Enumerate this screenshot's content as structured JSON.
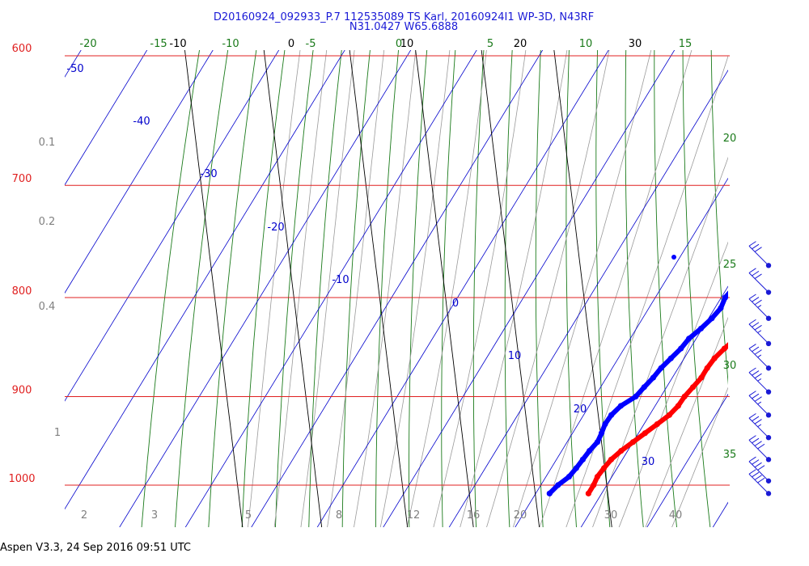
{
  "header": {
    "line1": "D20160924_092933_P.7 112535089 TS Karl, 20160924I1 WP-3D, N43RF",
    "line2": "N31.0427 W65.6888"
  },
  "footer": {
    "text": "Aspen V3.3, 24 Sep 2016  09:51 UTC"
  },
  "colors": {
    "isobar": "#e02020",
    "isotherm": "#0000cc",
    "dry_adiabat": "#1a7a1a",
    "moist_adiabat": "#9a9a9a",
    "mixing_ratio": "#000000",
    "temperature": "#ff0000",
    "dewpoint": "#0000ff",
    "barbs": "#1a1ad6"
  },
  "chart_data": {
    "type": "line",
    "title": "",
    "pressure_labels": [
      "600",
      "700",
      "800",
      "900",
      "1000"
    ],
    "isotherm_labels": [
      "-50",
      "-40",
      "-30",
      "-20",
      "-10",
      "0",
      "10",
      "20",
      "30"
    ],
    "theta_top_labels": [
      "-20",
      "-15",
      "-10",
      "-5",
      "0",
      "5",
      "10",
      "15"
    ],
    "theta_right_labels": [
      "20",
      "25",
      "30",
      "35"
    ],
    "mixing_ratio_top_labels": [
      "-10",
      "0",
      "10",
      "20",
      "30"
    ],
    "left_grey_labels": [
      "0.1",
      "0.2",
      "0.4",
      "1"
    ],
    "bottom_labels": [
      "2",
      "3",
      "5",
      "8",
      "12",
      "16",
      "20",
      "30",
      "40"
    ],
    "series": [
      {
        "name": "",
        "role": "temperature",
        "points": [
          [
            1010,
            28
          ],
          [
            1000,
            28
          ],
          [
            990,
            27.8
          ],
          [
            980,
            28
          ],
          [
            970,
            28.3
          ],
          [
            960,
            29
          ],
          [
            950,
            30
          ],
          [
            940,
            31
          ],
          [
            930,
            32
          ],
          [
            920,
            33
          ],
          [
            910,
            33.5
          ],
          [
            900,
            33.6
          ],
          [
            890,
            34
          ],
          [
            880,
            34.4
          ],
          [
            870,
            34.4
          ],
          [
            860,
            34.6
          ],
          [
            850,
            35.2
          ],
          [
            840,
            36
          ],
          [
            830,
            37
          ],
          [
            820,
            37.8
          ],
          [
            810,
            38
          ],
          [
            800,
            38.7
          ],
          [
            790,
            39
          ]
        ]
      },
      {
        "name": "",
        "role": "dewpoint",
        "points": [
          [
            1010,
            22.1
          ],
          [
            1000,
            22.6
          ],
          [
            990,
            23.5
          ],
          [
            980,
            23.8
          ],
          [
            970,
            24
          ],
          [
            960,
            24.2
          ],
          [
            950,
            24.6
          ],
          [
            940,
            24.4
          ],
          [
            930,
            24.1
          ],
          [
            920,
            24.2
          ],
          [
            910,
            24.8
          ],
          [
            900,
            26.2
          ],
          [
            890,
            26.6
          ],
          [
            880,
            27.1
          ],
          [
            870,
            27.4
          ],
          [
            860,
            28
          ],
          [
            850,
            28.6
          ],
          [
            840,
            28.9
          ],
          [
            830,
            29.8
          ],
          [
            820,
            30.5
          ],
          [
            810,
            30.9
          ],
          [
            800,
            30.6
          ],
          [
            790,
            31
          ]
        ]
      }
    ],
    "wind_barbs": [
      {
        "pressure": 1010,
        "knots": 40
      },
      {
        "pressure": 995,
        "knots": 40
      },
      {
        "pressure": 970,
        "knots": 40
      },
      {
        "pressure": 945,
        "knots": 35
      },
      {
        "pressure": 920,
        "knots": 35
      },
      {
        "pressure": 895,
        "knots": 35
      },
      {
        "pressure": 870,
        "knots": 35
      },
      {
        "pressure": 845,
        "knots": 35
      },
      {
        "pressure": 820,
        "knots": 35
      },
      {
        "pressure": 795,
        "knots": 30
      },
      {
        "pressure": 770,
        "knots": 30
      }
    ]
  }
}
